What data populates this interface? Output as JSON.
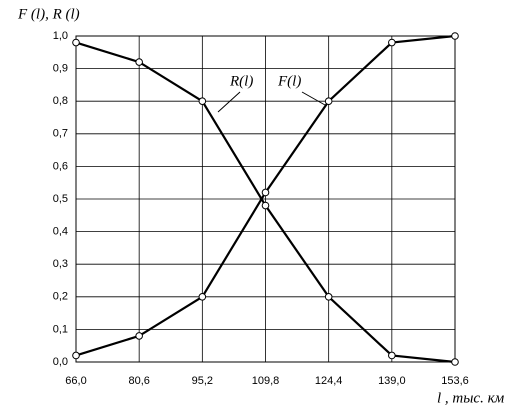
{
  "chart_data": {
    "type": "line",
    "y_label": "F (l), R (l)",
    "x_label": "l , тыс. км",
    "x": [
      66.0,
      80.6,
      95.2,
      109.8,
      124.4,
      139.0,
      153.6
    ],
    "series": [
      {
        "name": "F(l)",
        "color": "#000000",
        "values": [
          0.02,
          0.08,
          0.2,
          0.52,
          0.8,
          0.98,
          1.0
        ]
      },
      {
        "name": "R(l)",
        "color": "#000000",
        "values": [
          0.98,
          0.92,
          0.8,
          0.48,
          0.2,
          0.02,
          0.0
        ]
      }
    ],
    "xlim": [
      66.0,
      153.6
    ],
    "xticks": [
      {
        "value": 66.0,
        "label": "66,0"
      },
      {
        "value": 80.6,
        "label": "80,6"
      },
      {
        "value": 95.2,
        "label": "95,2"
      },
      {
        "value": 109.8,
        "label": "109,8"
      },
      {
        "value": 124.4,
        "label": "124,4"
      },
      {
        "value": 139.0,
        "label": "139,0"
      },
      {
        "value": 153.6,
        "label": "153,6"
      }
    ],
    "ylim": [
      0,
      1
    ],
    "yticks": [
      {
        "value": 0,
        "label": "0,0"
      },
      {
        "value": 0.1,
        "label": "0,1"
      },
      {
        "value": 0.2,
        "label": "0,2"
      },
      {
        "value": 0.3,
        "label": "0,3"
      },
      {
        "value": 0.4,
        "label": "0,4"
      },
      {
        "value": 0.5,
        "label": "0,5"
      },
      {
        "value": 0.6,
        "label": "0,6"
      },
      {
        "value": 0.7,
        "label": "0,7"
      },
      {
        "value": 0.8,
        "label": "0,8"
      },
      {
        "value": 0.9,
        "label": "0,9"
      },
      {
        "value": 1,
        "label": "1,0"
      }
    ],
    "grid": true
  }
}
